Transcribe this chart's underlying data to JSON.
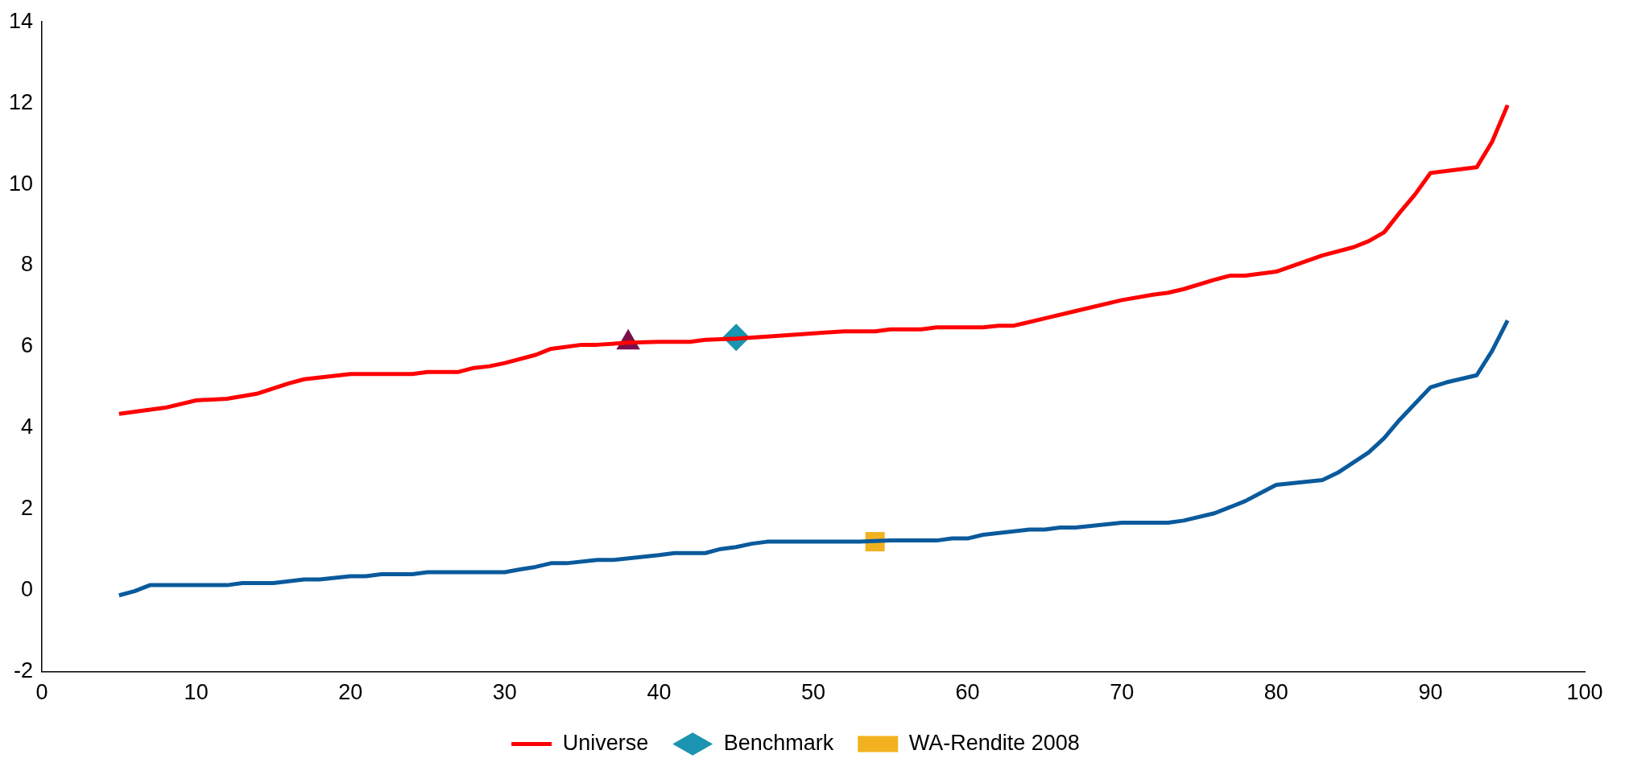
{
  "chart_data": {
    "type": "line",
    "xlim": [
      0,
      100
    ],
    "xticks": [
      0,
      10,
      20,
      30,
      40,
      50,
      60,
      70,
      80,
      90,
      100
    ],
    "ylim": [
      -2,
      14
    ],
    "yticks": [
      -2,
      0,
      2,
      4,
      6,
      8,
      10,
      12,
      14
    ],
    "grid": false,
    "legend": "bottom",
    "line_style": "solid",
    "series": [
      {
        "name": "Universe",
        "type": "line",
        "marker": "none",
        "color": "#ff0000",
        "x": [
          5,
          8,
          10,
          12,
          14,
          16,
          17,
          20,
          24,
          25,
          27,
          28,
          29,
          30,
          32,
          33,
          35,
          36,
          38,
          40,
          42,
          43,
          45,
          47,
          50,
          52,
          54,
          55,
          57,
          58,
          61,
          62,
          63,
          65,
          67,
          70,
          72,
          73,
          74,
          76,
          77,
          78,
          80,
          83,
          85,
          86,
          87,
          88,
          89,
          90,
          93,
          94,
          95
        ],
        "values": [
          4.35,
          4.5,
          4.68,
          4.72,
          4.85,
          5.1,
          5.2,
          5.33,
          5.33,
          5.38,
          5.38,
          5.48,
          5.52,
          5.6,
          5.8,
          5.95,
          6.05,
          6.05,
          6.1,
          6.12,
          6.12,
          6.17,
          6.2,
          6.25,
          6.33,
          6.38,
          6.38,
          6.43,
          6.43,
          6.48,
          6.48,
          6.52,
          6.52,
          6.7,
          6.88,
          7.15,
          7.28,
          7.33,
          7.42,
          7.65,
          7.75,
          7.75,
          7.85,
          8.25,
          8.45,
          8.6,
          8.82,
          9.3,
          9.75,
          10.28,
          10.42,
          11.05,
          11.95
        ]
      },
      {
        "type": "line",
        "marker": "none",
        "color": "#0a5a9c",
        "x": [
          5,
          6,
          7,
          12,
          13,
          15,
          17,
          18,
          20,
          21,
          22,
          24,
          25,
          30,
          31,
          32,
          33,
          34,
          36,
          37,
          40,
          41,
          43,
          44,
          45,
          46,
          47,
          53,
          55,
          58,
          59,
          60,
          61,
          64,
          65,
          66,
          67,
          70,
          73,
          74,
          76,
          77,
          78,
          79,
          80,
          83,
          84,
          86,
          87,
          88,
          89,
          90,
          91,
          93,
          94,
          95
        ],
        "values": [
          -0.12,
          -0.02,
          0.13,
          0.13,
          0.18,
          0.18,
          0.27,
          0.27,
          0.35,
          0.35,
          0.4,
          0.4,
          0.45,
          0.45,
          0.52,
          0.58,
          0.67,
          0.67,
          0.75,
          0.75,
          0.87,
          0.92,
          0.92,
          1.02,
          1.07,
          1.15,
          1.2,
          1.2,
          1.23,
          1.23,
          1.28,
          1.28,
          1.37,
          1.5,
          1.5,
          1.55,
          1.55,
          1.67,
          1.67,
          1.72,
          1.9,
          2.05,
          2.2,
          2.4,
          2.6,
          2.72,
          2.9,
          3.4,
          3.75,
          4.2,
          4.6,
          5.0,
          5.12,
          5.3,
          5.9,
          6.65
        ]
      },
      {
        "type": "scatter",
        "marker": "triangle",
        "color": "#7b0f4a",
        "x": [
          38
        ],
        "values": [
          6.1
        ]
      },
      {
        "name": "Benchmark",
        "type": "scatter",
        "marker": "diamond",
        "color": "#1a94b0",
        "x": [
          45
        ],
        "values": [
          6.23
        ]
      },
      {
        "name": "WA-Rendite 2008",
        "type": "scatter",
        "marker": "square",
        "color": "#f2b21f",
        "x": [
          54
        ],
        "values": [
          1.2
        ]
      }
    ]
  }
}
